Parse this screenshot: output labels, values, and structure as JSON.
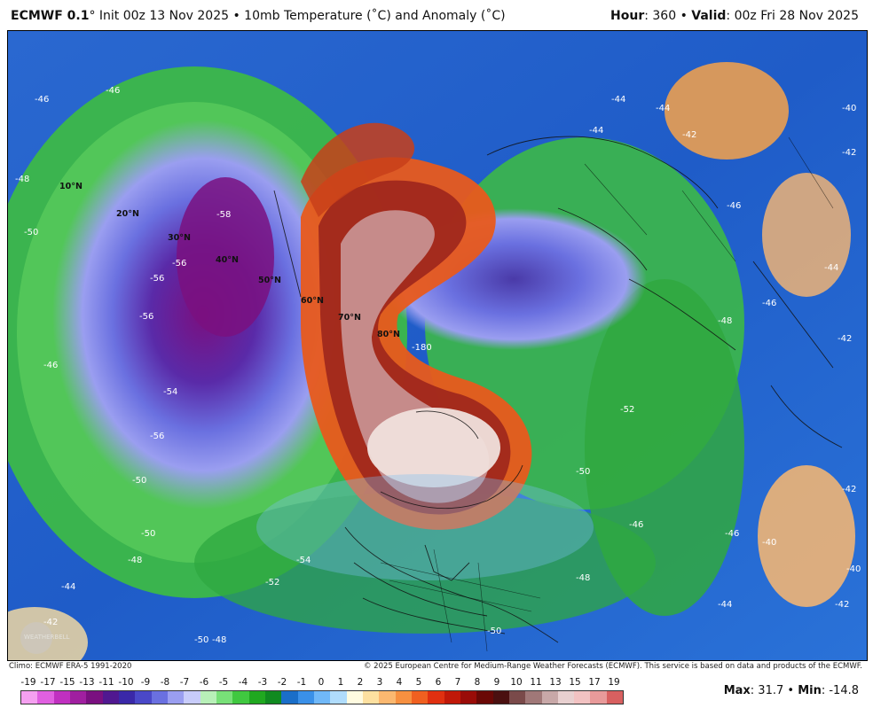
{
  "header": {
    "model": "ECMWF 0.1",
    "degree_symbol": "°",
    "init_text": " Init 00z 13 Nov 2025 • 10mb Temperature (˚C) and Anomaly (˚C)",
    "hour_label": "Hour",
    "hour_value": ": 360 • ",
    "valid_label": "Valid",
    "valid_value": ": 00z Fri 28 Nov 2025"
  },
  "credits": {
    "climo": "Climo: ECMWF ERA-5 1991-2020",
    "copyright": "© 2025 European Centre for Medium-Range Weather Forecasts (ECMWF). This service is based on data and products of the ECMWF."
  },
  "legend": {
    "ticks": [
      "-19",
      "-17",
      "-15",
      "-13",
      "-11",
      "-10",
      "-9",
      "-8",
      "-7",
      "-6",
      "-5",
      "-4",
      "-3",
      "-2",
      "-1",
      "0",
      "1",
      "2",
      "3",
      "4",
      "5",
      "6",
      "7",
      "8",
      "9",
      "10",
      "11",
      "13",
      "15",
      "17",
      "19"
    ],
    "colors": [
      "#f5a0f0",
      "#e060e0",
      "#c030c0",
      "#a01fa0",
      "#7a1080",
      "#501890",
      "#3a28a8",
      "#4a48c8",
      "#6a70e0",
      "#9a9ef0",
      "#c8ccfa",
      "#b8f0b8",
      "#78e078",
      "#40c840",
      "#20a820",
      "#108a20",
      "#1a6ec8",
      "#3a90e8",
      "#70b8f8",
      "#b0dcfc",
      "#fffbe0",
      "#fde0a0",
      "#fbb870",
      "#f79040",
      "#f06020",
      "#e03010",
      "#c01808",
      "#9a0c08",
      "#6a0806",
      "#4a1010",
      "#7a4a4a",
      "#a07878",
      "#c8a8a8",
      "#e8d0d0",
      "#f2c2c2",
      "#e89a9a",
      "#d86060"
    ]
  },
  "stats": {
    "max_label": "Max",
    "max_value": ": 31.7 • ",
    "min_label": "Min",
    "min_value": ": -14.8"
  },
  "map": {
    "latitude_labels": [
      "10°N",
      "20°N",
      "30°N",
      "40°N",
      "50°N",
      "60°N",
      "70°N",
      "80°N"
    ],
    "contour_labels": [
      "-56",
      "-56",
      "-56",
      "-58",
      "-54",
      "-56",
      "-50",
      "-48",
      "-46",
      "-46",
      "-44",
      "-42",
      "-50",
      "-48",
      "-52",
      "-54",
      "-46",
      "-48",
      "-50",
      "-44",
      "-42",
      "-40",
      "-44",
      "-42",
      "-40",
      "-46",
      "-50",
      "-52",
      "-48",
      "-46",
      "-44",
      "-42",
      "-42",
      "-44",
      "-46",
      "-50",
      "-50",
      "-48",
      "-46",
      "-44",
      "-42",
      "-40",
      "-180"
    ],
    "logo_text": "WEATHERBELL"
  }
}
